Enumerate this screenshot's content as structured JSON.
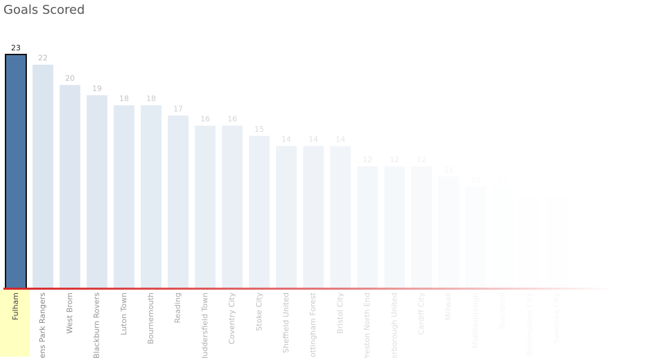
{
  "chart_data": {
    "type": "bar",
    "title": "Goals Scored",
    "categories": [
      "Fulham",
      "Queens Park Rangers",
      "West Brom",
      "Blackburn Rovers",
      "Luton Town",
      "Bournemouth",
      "Reading",
      "Huddersfield Town",
      "Coventry City",
      "Stoke City",
      "Sheffield United",
      "Nottingham Forest",
      "Bristol City",
      "Preston North End",
      "Peterborough United",
      "Cardiff City",
      "Millwall",
      "Middlesbrough",
      "Blackpool",
      "Birmingham City",
      "Swansea City"
    ],
    "values": [
      23,
      22,
      20,
      19,
      18,
      18,
      17,
      16,
      16,
      15,
      14,
      14,
      14,
      12,
      12,
      12,
      11,
      10,
      10,
      9,
      9
    ],
    "highlight_color": "#4e79a7",
    "color": "#dbe5ef",
    "ylim": [
      0,
      23
    ]
  }
}
